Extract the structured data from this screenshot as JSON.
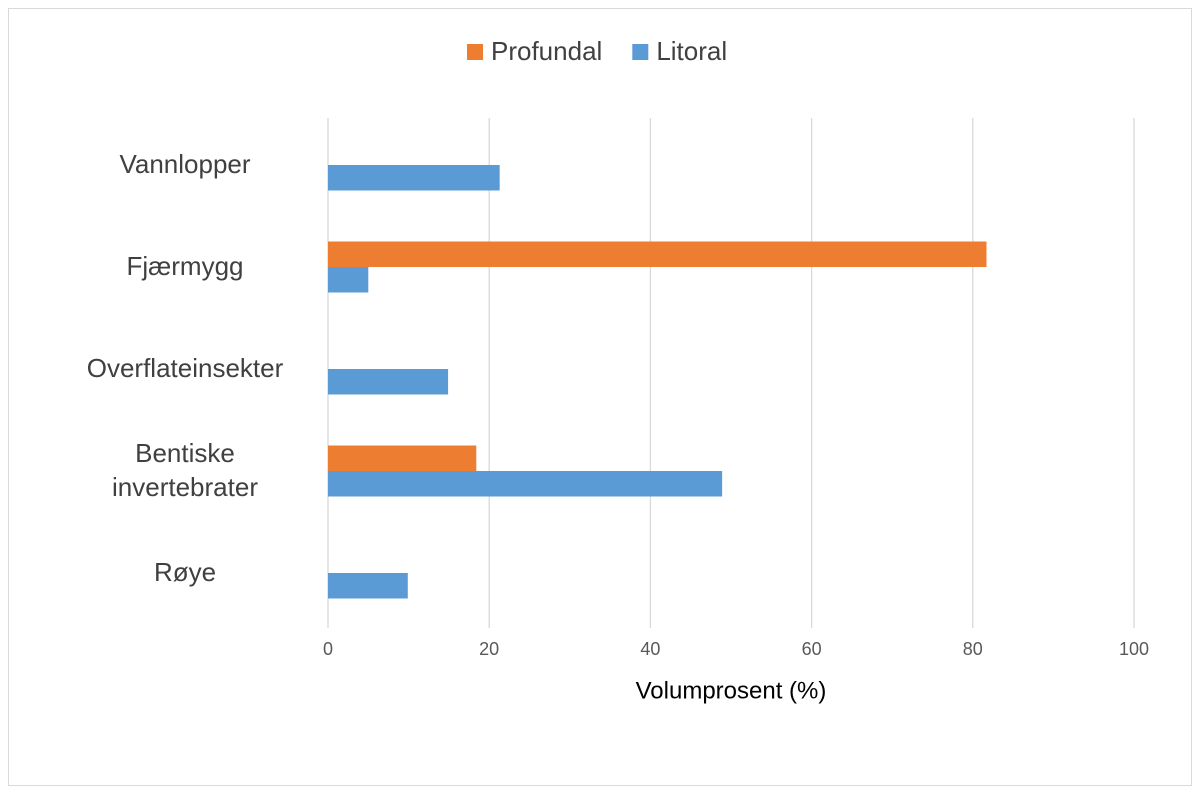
{
  "chart_data": {
    "type": "hbar",
    "categories": [
      "Vannlopper",
      "Fjærmygg",
      "Overflateinsekter",
      "Bentiske invertebrater",
      "Røye"
    ],
    "series": [
      {
        "name": "Profundal",
        "color": "#ed7d31",
        "values": [
          0,
          81.7,
          0,
          18.4,
          0
        ]
      },
      {
        "name": "Litoral",
        "color": "#5b9bd5",
        "values": [
          21.3,
          5.0,
          14.9,
          48.9,
          9.9
        ]
      }
    ],
    "x_label": "Volumprosent (%)",
    "xlim": [
      0,
      100
    ],
    "xticks": [
      0,
      20,
      40,
      60,
      80,
      100
    ],
    "grid": true,
    "legend": "top"
  }
}
